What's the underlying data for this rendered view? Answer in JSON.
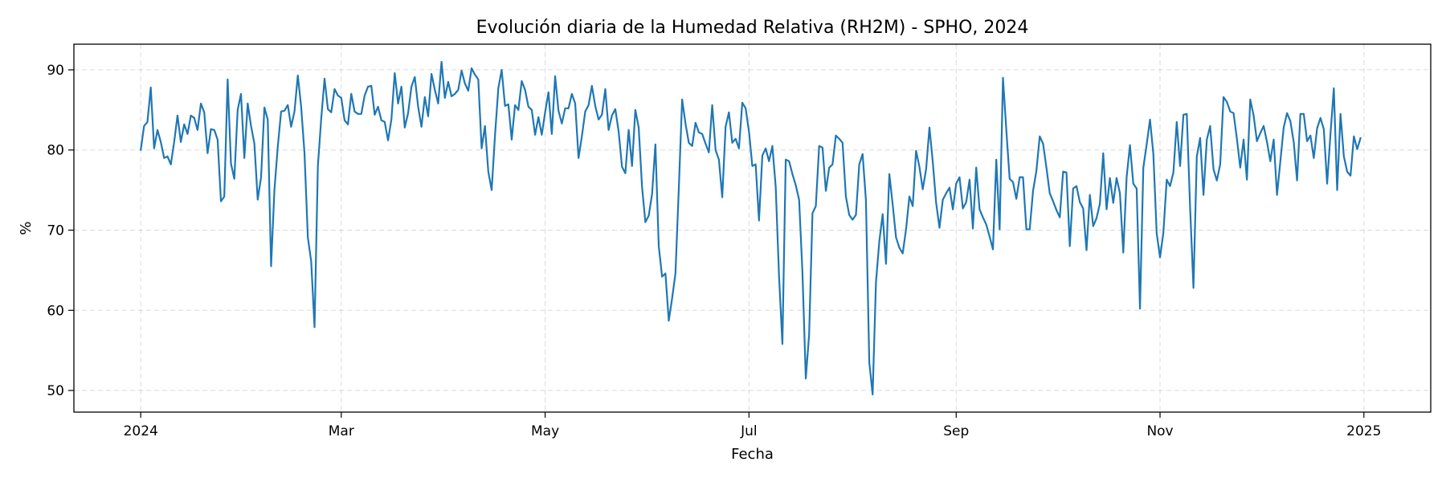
{
  "chart_data": {
    "type": "line",
    "title": "Evolución diaria de la Humedad Relativa (RH2M) - SPHO, 2024",
    "xlabel": "Fecha",
    "ylabel": "%",
    "x_start": "2024-01-01",
    "x_end": "2024-12-31",
    "xlim": [
      "2023-12-12",
      "2025-01-21"
    ],
    "ylim": [
      47.3,
      93.2
    ],
    "grid": true,
    "line_color": "#1f77b4",
    "x_ticks": [
      {
        "date": "2024-01-01",
        "label": "2024"
      },
      {
        "date": "2024-03-01",
        "label": "Mar"
      },
      {
        "date": "2024-05-01",
        "label": "May"
      },
      {
        "date": "2024-07-01",
        "label": "Jul"
      },
      {
        "date": "2024-09-01",
        "label": "Sep"
      },
      {
        "date": "2024-11-01",
        "label": "Nov"
      },
      {
        "date": "2025-01-01",
        "label": "2025"
      }
    ],
    "y_ticks": [
      50,
      60,
      70,
      80,
      90
    ],
    "series": [
      {
        "values": [
          80.0,
          83.0,
          83.5,
          87.8,
          80.2,
          82.5,
          81.0,
          79.0,
          79.2,
          78.2,
          81.0,
          84.3,
          81.0,
          83.2,
          82.0,
          84.3,
          84.0,
          82.5,
          85.8,
          84.7,
          79.6,
          82.6,
          82.5,
          81.3,
          73.6,
          74.2,
          88.8,
          78.3,
          76.4,
          85.0,
          87.0,
          79.0,
          85.8,
          83.0,
          80.8,
          73.8,
          76.6,
          85.3,
          83.8,
          65.5,
          75.0,
          80.4,
          84.8,
          84.9,
          85.6,
          82.9,
          84.8,
          89.3,
          85.4,
          79.6,
          69.1,
          66.1,
          57.9,
          78.0,
          83.9,
          88.9,
          85.1,
          84.7,
          87.6,
          86.8,
          86.5,
          83.7,
          83.2,
          87.0,
          84.8,
          84.5,
          84.5,
          86.8,
          87.9,
          88.0,
          84.4,
          85.4,
          83.7,
          83.5,
          81.2,
          83.8,
          89.6,
          85.8,
          87.9,
          82.8,
          84.6,
          87.9,
          89.1,
          85.4,
          82.9,
          86.6,
          84.2,
          89.5,
          87.5,
          85.8,
          91.0,
          86.5,
          88.5,
          86.7,
          87.0,
          87.5,
          89.9,
          88.3,
          87.4,
          90.2,
          89.4,
          88.8,
          80.2,
          83.0,
          77.3,
          75.0,
          81.8,
          87.7,
          90.0,
          85.5,
          85.7,
          81.3,
          85.6,
          85.0,
          88.6,
          87.5,
          85.4,
          85.0,
          81.9,
          84.1,
          81.9,
          84.7,
          87.2,
          82.0,
          89.2,
          84.9,
          83.3,
          85.2,
          85.2,
          87.0,
          85.8,
          79.0,
          81.7,
          84.8,
          85.6,
          88.0,
          85.5,
          83.8,
          84.4,
          87.6,
          82.5,
          84.3,
          85.1,
          82.3,
          77.9,
          77.1,
          82.5,
          78.0,
          85.0,
          82.8,
          75.4,
          71.0,
          71.8,
          74.5,
          80.7,
          68.0,
          64.2,
          64.6,
          58.7,
          61.5,
          64.6,
          75.2,
          86.3,
          83.3,
          80.9,
          80.5,
          83.4,
          82.2,
          82.0,
          80.8,
          79.7,
          85.6,
          80.0,
          78.8,
          74.1,
          82.9,
          84.7,
          80.9,
          81.4,
          80.2,
          85.9,
          85.2,
          82.3,
          78.0,
          78.2,
          71.2,
          79.3,
          80.2,
          78.6,
          80.5,
          75.4,
          64.2,
          55.8,
          78.8,
          78.6,
          77.0,
          75.6,
          73.8,
          64.7,
          51.5,
          57.0,
          72.1,
          73.0,
          80.5,
          80.3,
          74.9,
          77.8,
          78.2,
          81.8,
          81.4,
          80.9,
          74.2,
          71.9,
          71.3,
          71.9,
          78.2,
          79.5,
          73.7,
          53.5,
          49.5,
          63.5,
          68.6,
          72.0,
          65.8,
          77.0,
          73.2,
          69.1,
          67.8,
          67.1,
          70.1,
          74.2,
          73.0,
          79.9,
          77.9,
          75.1,
          77.6,
          82.8,
          78.5,
          73.4,
          70.3,
          73.8,
          74.6,
          75.3,
          72.6,
          75.8,
          76.6,
          72.7,
          73.5,
          76.3,
          70.2,
          77.8,
          72.6,
          71.6,
          70.7,
          69.2,
          67.6,
          78.8,
          70.1,
          89.0,
          82.5,
          76.4,
          76.0,
          73.9,
          76.6,
          76.6,
          70.1,
          70.1,
          74.9,
          77.4,
          81.7,
          80.8,
          77.8,
          74.6,
          73.6,
          72.5,
          71.6,
          77.3,
          77.2,
          68.0,
          75.2,
          75.5,
          73.5,
          72.7,
          67.5,
          74.4,
          70.5,
          71.5,
          73.3,
          79.6,
          72.6,
          76.5,
          73.4,
          76.5,
          74.6,
          67.2,
          76.6,
          80.6,
          75.8,
          75.2,
          60.2,
          77.8,
          80.7,
          83.8,
          79.5,
          69.6,
          66.6,
          69.7,
          76.3,
          75.5,
          77.2,
          83.5,
          78.0,
          84.4,
          84.5,
          72.8,
          62.8,
          79.2,
          81.5,
          74.4,
          81.3,
          83.0,
          77.6,
          76.2,
          78.2,
          86.6,
          86.0,
          84.8,
          84.6,
          81.4,
          77.8,
          81.3,
          76.3,
          86.3,
          84.3,
          81.1,
          82.1,
          83.0,
          81.0,
          78.6,
          81.3,
          74.4,
          78.6,
          82.8,
          84.6,
          83.6,
          81.0,
          76.2,
          84.5,
          84.5,
          81.1,
          81.8,
          79.0,
          82.7,
          84.0,
          82.6,
          75.8,
          82.0,
          87.7,
          75.0,
          84.5,
          79.2,
          77.3,
          76.8,
          81.7,
          80.1,
          81.5
        ]
      }
    ]
  }
}
